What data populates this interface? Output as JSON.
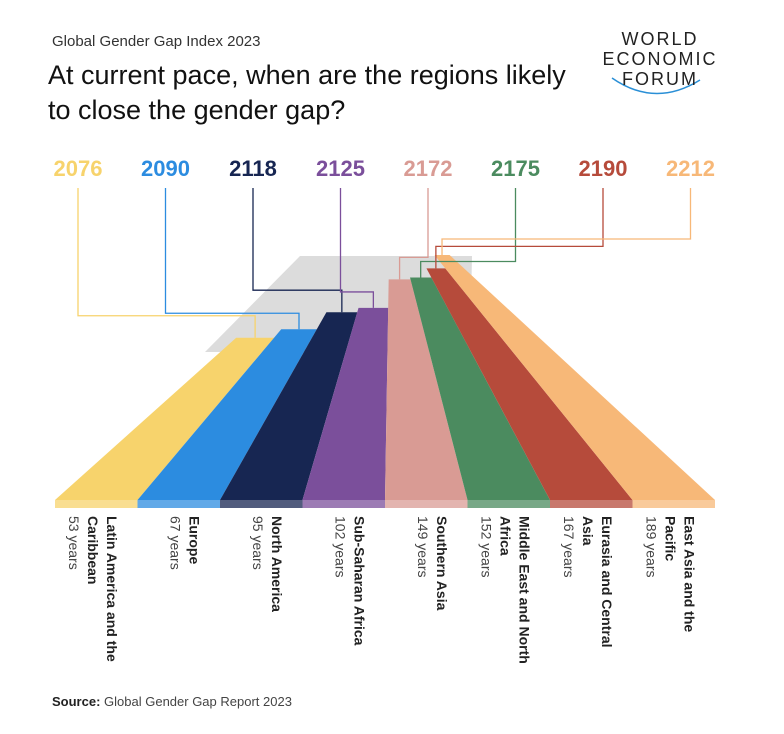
{
  "chart_data": {
    "type": "bar",
    "subtitle": "Global Gender Gap Index 2023",
    "title": "At current pace, when are the regions likely to close the gender gap?",
    "categories": [
      "Latin America and the Caribbean",
      "Europe",
      "North America",
      "Sub-Saharan Africa",
      "Southern Asia",
      "Middle East and North Africa",
      "Eurasia and Central Asia",
      "East Asia and the Pacific"
    ],
    "values": [
      53,
      67,
      95,
      102,
      149,
      152,
      167,
      189
    ],
    "value_labels": [
      "53 years",
      "67 years",
      "95 years",
      "102 years",
      "149 years",
      "152 years",
      "167 years",
      "189 years"
    ],
    "years": [
      2076,
      2090,
      2118,
      2125,
      2172,
      2175,
      2190,
      2212
    ],
    "colors": [
      "#f7d36c",
      "#2c8ce0",
      "#172652",
      "#7b4f9b",
      "#d99b94",
      "#4b8b5f",
      "#b64b3b",
      "#f7b878"
    ],
    "source_label": "Source:",
    "source": "Global Gender Gap Report 2023"
  },
  "logo": {
    "lines": [
      "WORLD",
      "ECONOMIC",
      "FORUM"
    ]
  }
}
